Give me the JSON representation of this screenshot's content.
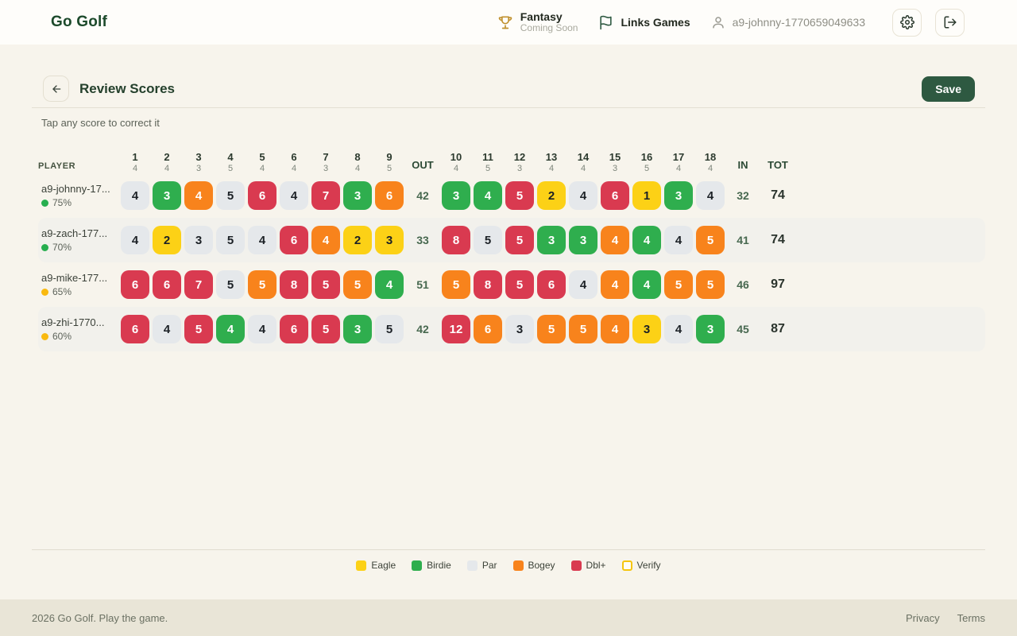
{
  "header": {
    "brand": "Go Golf",
    "fantasy": {
      "label": "Fantasy",
      "status": "Coming Soon"
    },
    "links_games": {
      "label": "Links Games"
    },
    "user_id": "a9-johnny-1770659049633"
  },
  "toolbar": {
    "title": "Review Scores",
    "save_label": "Save"
  },
  "hint": "Tap any score to correct it",
  "table": {
    "player_header": "PLAYER",
    "out_label": "OUT",
    "in_label": "IN",
    "tot_label": "TOT",
    "front_holes": [
      {
        "hole": 1,
        "par": 4
      },
      {
        "hole": 2,
        "par": 4
      },
      {
        "hole": 3,
        "par": 3
      },
      {
        "hole": 4,
        "par": 5
      },
      {
        "hole": 5,
        "par": 4
      },
      {
        "hole": 6,
        "par": 4
      },
      {
        "hole": 7,
        "par": 3
      },
      {
        "hole": 8,
        "par": 4
      },
      {
        "hole": 9,
        "par": 5
      }
    ],
    "back_holes": [
      {
        "hole": 10,
        "par": 4
      },
      {
        "hole": 11,
        "par": 5
      },
      {
        "hole": 12,
        "par": 3
      },
      {
        "hole": 13,
        "par": 4
      },
      {
        "hole": 14,
        "par": 4
      },
      {
        "hole": 15,
        "par": 3
      },
      {
        "hole": 16,
        "par": 5
      },
      {
        "hole": 17,
        "par": 4
      },
      {
        "hole": 18,
        "par": 4
      }
    ],
    "players": [
      {
        "name": "a9-johnny-17...",
        "percent": "75%",
        "status_dot": "green",
        "striped": false,
        "front_scores": [
          4,
          3,
          4,
          5,
          6,
          4,
          7,
          3,
          6
        ],
        "front_types": [
          "par",
          "birdie",
          "bogey",
          "par",
          "dbl",
          "par",
          "dbl",
          "birdie",
          "bogey"
        ],
        "out": 42,
        "back_scores": [
          3,
          4,
          5,
          2,
          4,
          6,
          1,
          3,
          4
        ],
        "back_types": [
          "birdie",
          "birdie",
          "dbl",
          "eagle",
          "par",
          "dbl",
          "eagle",
          "birdie",
          "par"
        ],
        "in": 32,
        "tot": 74
      },
      {
        "name": "a9-zach-177...",
        "percent": "70%",
        "status_dot": "green",
        "striped": true,
        "front_scores": [
          4,
          2,
          3,
          5,
          4,
          6,
          4,
          2,
          3
        ],
        "front_types": [
          "par",
          "eagle",
          "par",
          "par",
          "par",
          "dbl",
          "bogey",
          "eagle",
          "eagle"
        ],
        "out": 33,
        "back_scores": [
          8,
          5,
          5,
          3,
          3,
          4,
          4,
          4,
          5
        ],
        "back_types": [
          "dbl",
          "par",
          "dbl",
          "birdie",
          "birdie",
          "bogey",
          "birdie",
          "par",
          "bogey"
        ],
        "in": 41,
        "tot": 74
      },
      {
        "name": "a9-mike-177...",
        "percent": "65%",
        "status_dot": "amber",
        "striped": false,
        "front_scores": [
          6,
          6,
          7,
          5,
          5,
          8,
          5,
          5,
          4
        ],
        "front_types": [
          "dbl",
          "dbl",
          "dbl",
          "par",
          "bogey",
          "dbl",
          "dbl",
          "bogey",
          "birdie"
        ],
        "out": 51,
        "back_scores": [
          5,
          8,
          5,
          6,
          4,
          4,
          4,
          5,
          5
        ],
        "back_types": [
          "bogey",
          "dbl",
          "dbl",
          "dbl",
          "par",
          "bogey",
          "birdie",
          "bogey",
          "bogey"
        ],
        "in": 46,
        "tot": 97
      },
      {
        "name": "a9-zhi-1770...",
        "percent": "60%",
        "status_dot": "amber",
        "striped": true,
        "front_scores": [
          6,
          4,
          5,
          4,
          4,
          6,
          5,
          3,
          5
        ],
        "front_types": [
          "dbl",
          "par",
          "dbl",
          "birdie",
          "par",
          "dbl",
          "dbl",
          "birdie",
          "par"
        ],
        "out": 42,
        "back_scores": [
          12,
          6,
          3,
          5,
          5,
          4,
          3,
          4,
          3
        ],
        "back_types": [
          "dbl",
          "bogey",
          "par",
          "bogey",
          "bogey",
          "bogey",
          "eagle",
          "par",
          "birdie"
        ],
        "in": 45,
        "tot": 87
      }
    ]
  },
  "legend": [
    {
      "label": "Eagle",
      "type": "eagle"
    },
    {
      "label": "Birdie",
      "type": "birdie"
    },
    {
      "label": "Par",
      "type": "par"
    },
    {
      "label": "Bogey",
      "type": "bogey"
    },
    {
      "label": "Dbl+",
      "type": "dbl"
    },
    {
      "label": "Verify",
      "type": "verify"
    }
  ],
  "footer": {
    "copyright": "2026 Go Golf. Play the game.",
    "privacy": "Privacy",
    "terms": "Terms"
  },
  "colors": {
    "eagle": "#fcd116",
    "birdie": "#2fae4e",
    "par": "#e5e8eb",
    "bogey": "#f8831c",
    "dbl": "#d93a50",
    "brand_green": "#1c4a2b",
    "accent_green": "#2e5941",
    "page_bg": "#f7f4ec",
    "footer_bg": "#e9e5d7"
  }
}
